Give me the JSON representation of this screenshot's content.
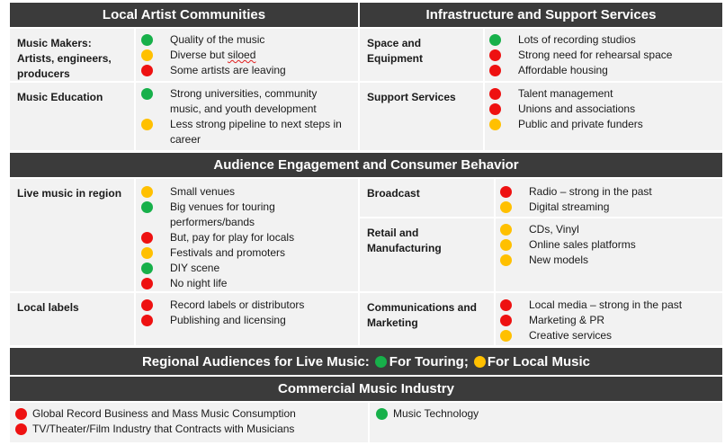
{
  "colors": {
    "header_bg": "#3b3b3b",
    "cell_bg": "#f2f2f2",
    "red": "#ee1111",
    "yellow": "#ffc000",
    "green": "#17b04a"
  },
  "headers": {
    "local_artist": "Local Artist Communities",
    "infrastructure": "Infrastructure and Support Services",
    "audience": "Audience Engagement and Consumer Behavior",
    "commercial": "Commercial Music Industry"
  },
  "regional": {
    "prefix": "Regional Audiences for Live Music:",
    "touring": "For Touring;",
    "local": "For Local Music"
  },
  "rows": {
    "music_makers": {
      "label": "Music Makers: Artists, engineers, producers",
      "items": [
        {
          "status": "green",
          "text": "Quality of the music"
        },
        {
          "status": "yellow",
          "text_a": "Diverse but ",
          "text_b": "siloed"
        },
        {
          "status": "red",
          "text": "Some artists are leaving"
        }
      ]
    },
    "space": {
      "label": "Space and Equipment",
      "items": [
        {
          "status": "green",
          "text": "Lots of recording studios"
        },
        {
          "status": "red",
          "text": "Strong need for rehearsal space"
        },
        {
          "status": "red",
          "text": "Affordable housing"
        }
      ]
    },
    "music_education": {
      "label": "Music Education",
      "items": [
        {
          "status": "green",
          "text": "Strong universities, community music, and youth development"
        },
        {
          "status": "yellow",
          "text": "Less strong pipeline to next steps in career"
        }
      ]
    },
    "support": {
      "label": "Support Services",
      "items": [
        {
          "status": "red",
          "text": "Talent management"
        },
        {
          "status": "red",
          "text": "Unions and associations"
        },
        {
          "status": "yellow",
          "text": "Public and private funders"
        }
      ]
    },
    "live_music": {
      "label": "Live music in region",
      "items": [
        {
          "status": "yellow",
          "text": "Small venues"
        },
        {
          "status": "green",
          "text": "Big venues for touring performers/bands"
        },
        {
          "status": "red",
          "text": "But, pay for play for locals"
        },
        {
          "status": "yellow",
          "text": "Festivals and promoters"
        },
        {
          "status": "green",
          "text": "DIY scene"
        },
        {
          "status": "red",
          "text": "No night life"
        }
      ]
    },
    "broadcast": {
      "label": "Broadcast",
      "items": [
        {
          "status": "red",
          "text": "Radio – strong in the past"
        },
        {
          "status": "yellow",
          "text": "Digital streaming"
        }
      ]
    },
    "retail": {
      "label": "Retail and Manufacturing",
      "items": [
        {
          "status": "yellow",
          "text": "CDs, Vinyl"
        },
        {
          "status": "yellow",
          "text": "Online sales platforms"
        },
        {
          "status": "yellow",
          "text": "New models"
        }
      ]
    },
    "local_labels": {
      "label": "Local labels",
      "items": [
        {
          "status": "red",
          "text": "Record labels or distributors"
        },
        {
          "status": "red",
          "text": "Publishing and licensing"
        }
      ]
    },
    "communications": {
      "label": "Communications and Marketing",
      "items": [
        {
          "status": "red",
          "text": "Local media – strong in the past"
        },
        {
          "status": "red",
          "text": "Marketing & PR"
        },
        {
          "status": "yellow",
          "text": "Creative services"
        }
      ]
    }
  },
  "commercial_items": {
    "left": [
      {
        "status": "red",
        "text": "Global Record Business and Mass Music Consumption"
      },
      {
        "status": "red",
        "text": "TV/Theater/Film Industry that Contracts with Musicians"
      }
    ],
    "right": [
      {
        "status": "green",
        "text": "Music Technology"
      }
    ]
  }
}
